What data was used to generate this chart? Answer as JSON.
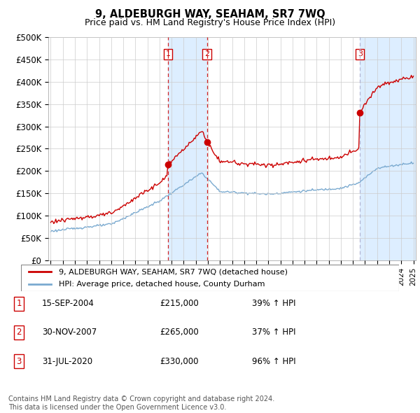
{
  "title": "9, ALDEBURGH WAY, SEAHAM, SR7 7WQ",
  "subtitle": "Price paid vs. HM Land Registry's House Price Index (HPI)",
  "ylim": [
    0,
    500000
  ],
  "yticks": [
    0,
    50000,
    100000,
    150000,
    200000,
    250000,
    300000,
    350000,
    400000,
    450000,
    500000
  ],
  "ytick_labels": [
    "£0",
    "£50K",
    "£100K",
    "£150K",
    "£200K",
    "£250K",
    "£300K",
    "£350K",
    "£400K",
    "£450K",
    "£500K"
  ],
  "sales": [
    {
      "date_num": 2004.71,
      "price": 215000,
      "label": "1"
    },
    {
      "date_num": 2007.92,
      "price": 265000,
      "label": "2"
    },
    {
      "date_num": 2020.58,
      "price": 330000,
      "label": "3"
    }
  ],
  "sale_dates_display": [
    "15-SEP-2004",
    "30-NOV-2007",
    "31-JUL-2020"
  ],
  "sale_prices_display": [
    "£215,000",
    "£265,000",
    "£330,000"
  ],
  "sale_pcts_display": [
    "39% ↑ HPI",
    "37% ↑ HPI",
    "96% ↑ HPI"
  ],
  "hpi_line_color": "#7aaad0",
  "property_line_color": "#cc0000",
  "vline_color_red": "#cc0000",
  "vline_color_grey": "#aaaacc",
  "shaded_color": "#ddeeff",
  "plot_bg": "#ffffff",
  "legend_label_property": "9, ALDEBURGH WAY, SEAHAM, SR7 7WQ (detached house)",
  "legend_label_hpi": "HPI: Average price, detached house, County Durham",
  "footer": "Contains HM Land Registry data © Crown copyright and database right 2024.\nThis data is licensed under the Open Government Licence v3.0.",
  "start_year": 1995,
  "end_year": 2025
}
